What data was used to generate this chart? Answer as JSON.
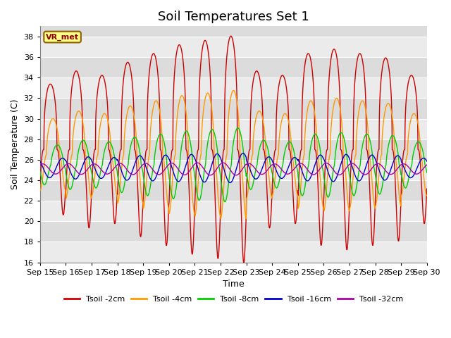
{
  "title": "Soil Temperatures Set 1",
  "xlabel": "Time",
  "ylabel": "Soil Temperature (C)",
  "ylim": [
    16,
    39
  ],
  "xlim": [
    0,
    15
  ],
  "xtick_labels": [
    "Sep 15",
    "Sep 16",
    "Sep 17",
    "Sep 18",
    "Sep 19",
    "Sep 20",
    "Sep 21",
    "Sep 22",
    "Sep 23",
    "Sep 24",
    "Sep 25",
    "Sep 26",
    "Sep 27",
    "Sep 28",
    "Sep 29",
    "Sep 30"
  ],
  "ytick_values": [
    16,
    18,
    20,
    22,
    24,
    26,
    28,
    30,
    32,
    34,
    36,
    38
  ],
  "series": [
    {
      "label": "Tsoil -2cm",
      "color": "#cc0000",
      "base": 27.0,
      "amp": 8.5,
      "phase": 0.15,
      "amp_variation": [
        0.75,
        0.9,
        0.85,
        1.0,
        1.1,
        1.2,
        1.25,
        1.3,
        0.9,
        0.85,
        1.1,
        1.15,
        1.1,
        1.05,
        0.85
      ],
      "sharpness": 3.0
    },
    {
      "label": "Tsoil -4cm",
      "color": "#ff9900",
      "base": 26.5,
      "amp": 5.0,
      "phase": 0.25,
      "amp_variation": [
        0.7,
        0.85,
        0.8,
        0.95,
        1.05,
        1.15,
        1.2,
        1.25,
        0.85,
        0.8,
        1.05,
        1.1,
        1.05,
        1.0,
        0.8
      ],
      "sharpness": 2.0
    },
    {
      "label": "Tsoil -8cm",
      "color": "#00cc00",
      "base": 25.5,
      "amp": 3.0,
      "phase": 0.42,
      "amp_variation": [
        0.65,
        0.8,
        0.75,
        0.9,
        1.0,
        1.1,
        1.15,
        1.2,
        0.8,
        0.75,
        1.0,
        1.05,
        1.0,
        0.95,
        0.75
      ],
      "sharpness": 1.5
    },
    {
      "label": "Tsoil -16cm",
      "color": "#0000cc",
      "base": 25.2,
      "amp": 1.2,
      "phase": 0.62,
      "amp_variation": [
        0.8,
        0.9,
        0.85,
        1.0,
        1.05,
        1.1,
        1.15,
        1.2,
        0.9,
        0.85,
        1.05,
        1.1,
        1.05,
        1.0,
        0.8
      ],
      "sharpness": 1.0
    },
    {
      "label": "Tsoil -32cm",
      "color": "#aa00aa",
      "base": 25.1,
      "amp": 0.55,
      "phase": 0.85,
      "amp_variation": [
        0.9,
        0.95,
        0.9,
        1.0,
        1.0,
        1.05,
        1.1,
        1.1,
        0.95,
        0.9,
        1.0,
        1.05,
        1.0,
        0.95,
        0.9
      ],
      "sharpness": 1.0
    }
  ],
  "vr_met_label": "VR_met",
  "background_color": "#dcdcdc",
  "band_color": "#ebebeb",
  "title_fontsize": 13,
  "axis_label_fontsize": 9,
  "tick_fontsize": 8
}
